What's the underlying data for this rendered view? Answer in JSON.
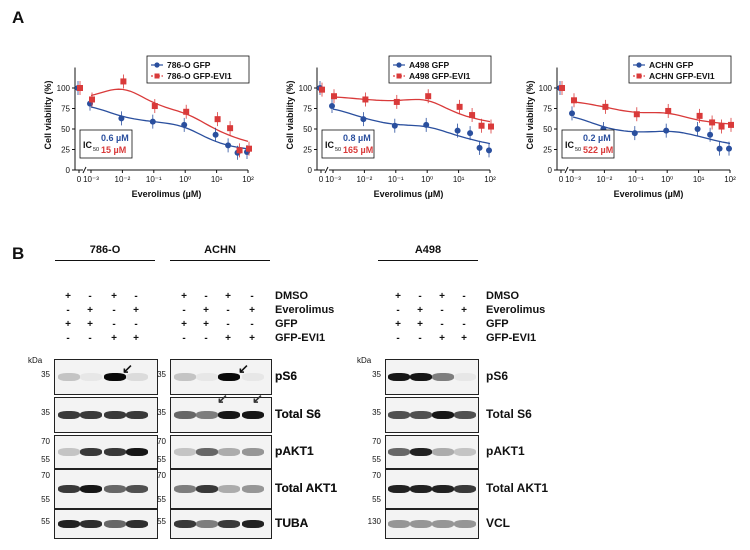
{
  "panels": {
    "a": "A",
    "b": "B"
  },
  "axis_common": {
    "ylabel": "Cell viability (%)",
    "xlabel": "Everolimus (µM)",
    "yticks": [
      "0",
      "25",
      "50",
      "75",
      "100"
    ],
    "xticks": [
      "0",
      "10⁻³",
      "10⁻²",
      "10⁻¹",
      "10⁰",
      "10¹",
      "10²"
    ],
    "ic50_label": "IC"
  },
  "colors": {
    "gfp": "#2a4f9e",
    "evi1": "#d93a3a"
  },
  "chart_data": [
    {
      "type": "line",
      "ylabel": "Cell viability (%)",
      "xlabel": "Everolimus (µM)",
      "ylim": [
        0,
        125
      ],
      "legend_position": "top-right",
      "ic50": {
        "gfp": "0.6 µM",
        "evi1": "15 µM"
      },
      "series": [
        {
          "name": "786-O GFP",
          "color": "#2a4f9e",
          "points": [
            [
              0,
              100
            ],
            [
              0.001,
              81
            ],
            [
              0.01,
              63
            ],
            [
              0.1,
              59
            ],
            [
              1,
              55
            ],
            [
              10,
              43
            ],
            [
              25,
              30
            ],
            [
              50,
              21
            ],
            [
              100,
              22
            ]
          ]
        },
        {
          "name": "786-O GFP-EVI1",
          "color": "#d93a3a",
          "points": [
            [
              0,
              100
            ],
            [
              0.001,
              86
            ],
            [
              0.01,
              108
            ],
            [
              0.1,
              78
            ],
            [
              1,
              71
            ],
            [
              10,
              62
            ],
            [
              25,
              51
            ],
            [
              50,
              24
            ],
            [
              100,
              26
            ]
          ]
        }
      ]
    },
    {
      "type": "line",
      "ylabel": "Cell viability (%)",
      "xlabel": "Everolimus (µM)",
      "ylim": [
        0,
        125
      ],
      "legend_position": "top-right",
      "ic50": {
        "gfp": "0.8 µM",
        "evi1": "165 µM"
      },
      "series": [
        {
          "name": "A498 GFP",
          "color": "#2a4f9e",
          "points": [
            [
              0,
              100
            ],
            [
              0.001,
              78
            ],
            [
              0.01,
              62
            ],
            [
              0.1,
              54
            ],
            [
              1,
              55
            ],
            [
              10,
              48
            ],
            [
              25,
              45
            ],
            [
              50,
              27
            ],
            [
              100,
              24
            ]
          ]
        },
        {
          "name": "A498 GFP-EVI1",
          "color": "#d93a3a",
          "points": [
            [
              0,
              98
            ],
            [
              0.001,
              90
            ],
            [
              0.01,
              86
            ],
            [
              0.1,
              83
            ],
            [
              1,
              90
            ],
            [
              10,
              77
            ],
            [
              25,
              67
            ],
            [
              50,
              54
            ],
            [
              100,
              53
            ]
          ]
        }
      ]
    },
    {
      "type": "line",
      "ylabel": "Cell viability (%)",
      "xlabel": "Everolimus (µM)",
      "ylim": [
        0,
        125
      ],
      "legend_position": "top-right",
      "ic50": {
        "gfp": "0.2 µM",
        "evi1": "522 µM"
      },
      "series": [
        {
          "name": "ACHN GFP",
          "color": "#2a4f9e",
          "points": [
            [
              0,
              100
            ],
            [
              0.001,
              69
            ],
            [
              0.01,
              50
            ],
            [
              0.1,
              45
            ],
            [
              1,
              48
            ],
            [
              10,
              50
            ],
            [
              25,
              43
            ],
            [
              50,
              26
            ],
            [
              100,
              26
            ]
          ]
        },
        {
          "name": "ACHN GFP-EVI1",
          "color": "#d93a3a",
          "points": [
            [
              0,
              100
            ],
            [
              0.001,
              85
            ],
            [
              0.01,
              77
            ],
            [
              0.1,
              68
            ],
            [
              1,
              72
            ],
            [
              10,
              66
            ],
            [
              25,
              58
            ],
            [
              50,
              53
            ],
            [
              100,
              55
            ]
          ]
        }
      ]
    }
  ],
  "blots": {
    "cell_lines_left": [
      "786-O",
      "ACHN"
    ],
    "cell_line_right": "A498",
    "conditions": [
      {
        "label": "DMSO",
        "signs": [
          "+",
          "-",
          "+",
          "-"
        ]
      },
      {
        "label": "Everolimus",
        "signs": [
          "-",
          "+",
          "-",
          "+"
        ]
      },
      {
        "label": "GFP",
        "signs": [
          "+",
          "+",
          "-",
          "-"
        ]
      },
      {
        "label": "GFP-EVI1",
        "signs": [
          "-",
          "-",
          "+",
          "+"
        ]
      }
    ],
    "kda": "kDa",
    "rows_left": [
      {
        "label": "pS6",
        "markers": [
          "35"
        ]
      },
      {
        "label": "Total S6",
        "markers": [
          "35"
        ]
      },
      {
        "label": "pAKT1",
        "markers": [
          "70",
          "55"
        ]
      },
      {
        "label": "Total AKT1",
        "markers": [
          "70",
          "55"
        ]
      },
      {
        "label": "TUBA",
        "markers": [
          "55"
        ]
      }
    ],
    "rows_right": [
      {
        "label": "pS6",
        "markers": [
          "35"
        ]
      },
      {
        "label": "Total S6",
        "markers": [
          "35"
        ]
      },
      {
        "label": "pAKT1",
        "markers": [
          "70",
          "55"
        ]
      },
      {
        "label": "Total AKT1",
        "markers": [
          "70",
          "55"
        ]
      },
      {
        "label": "VCL",
        "markers": [
          "130"
        ]
      }
    ]
  }
}
